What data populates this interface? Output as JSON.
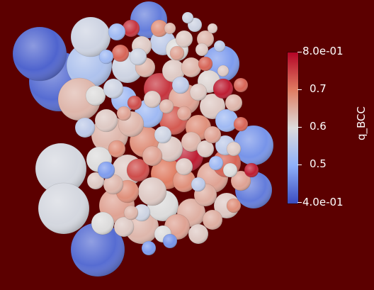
{
  "colorbar": {
    "title": "q_BCC",
    "min_label": "4.0e-01",
    "max_label": "8.0e-01",
    "ticks": [
      "0.7",
      "0.6",
      "0.5"
    ],
    "colors": {
      "low": "#3b4cc0",
      "mid": "#dddcdc",
      "high": "#b40426"
    }
  },
  "background_color": "#5c0000"
}
